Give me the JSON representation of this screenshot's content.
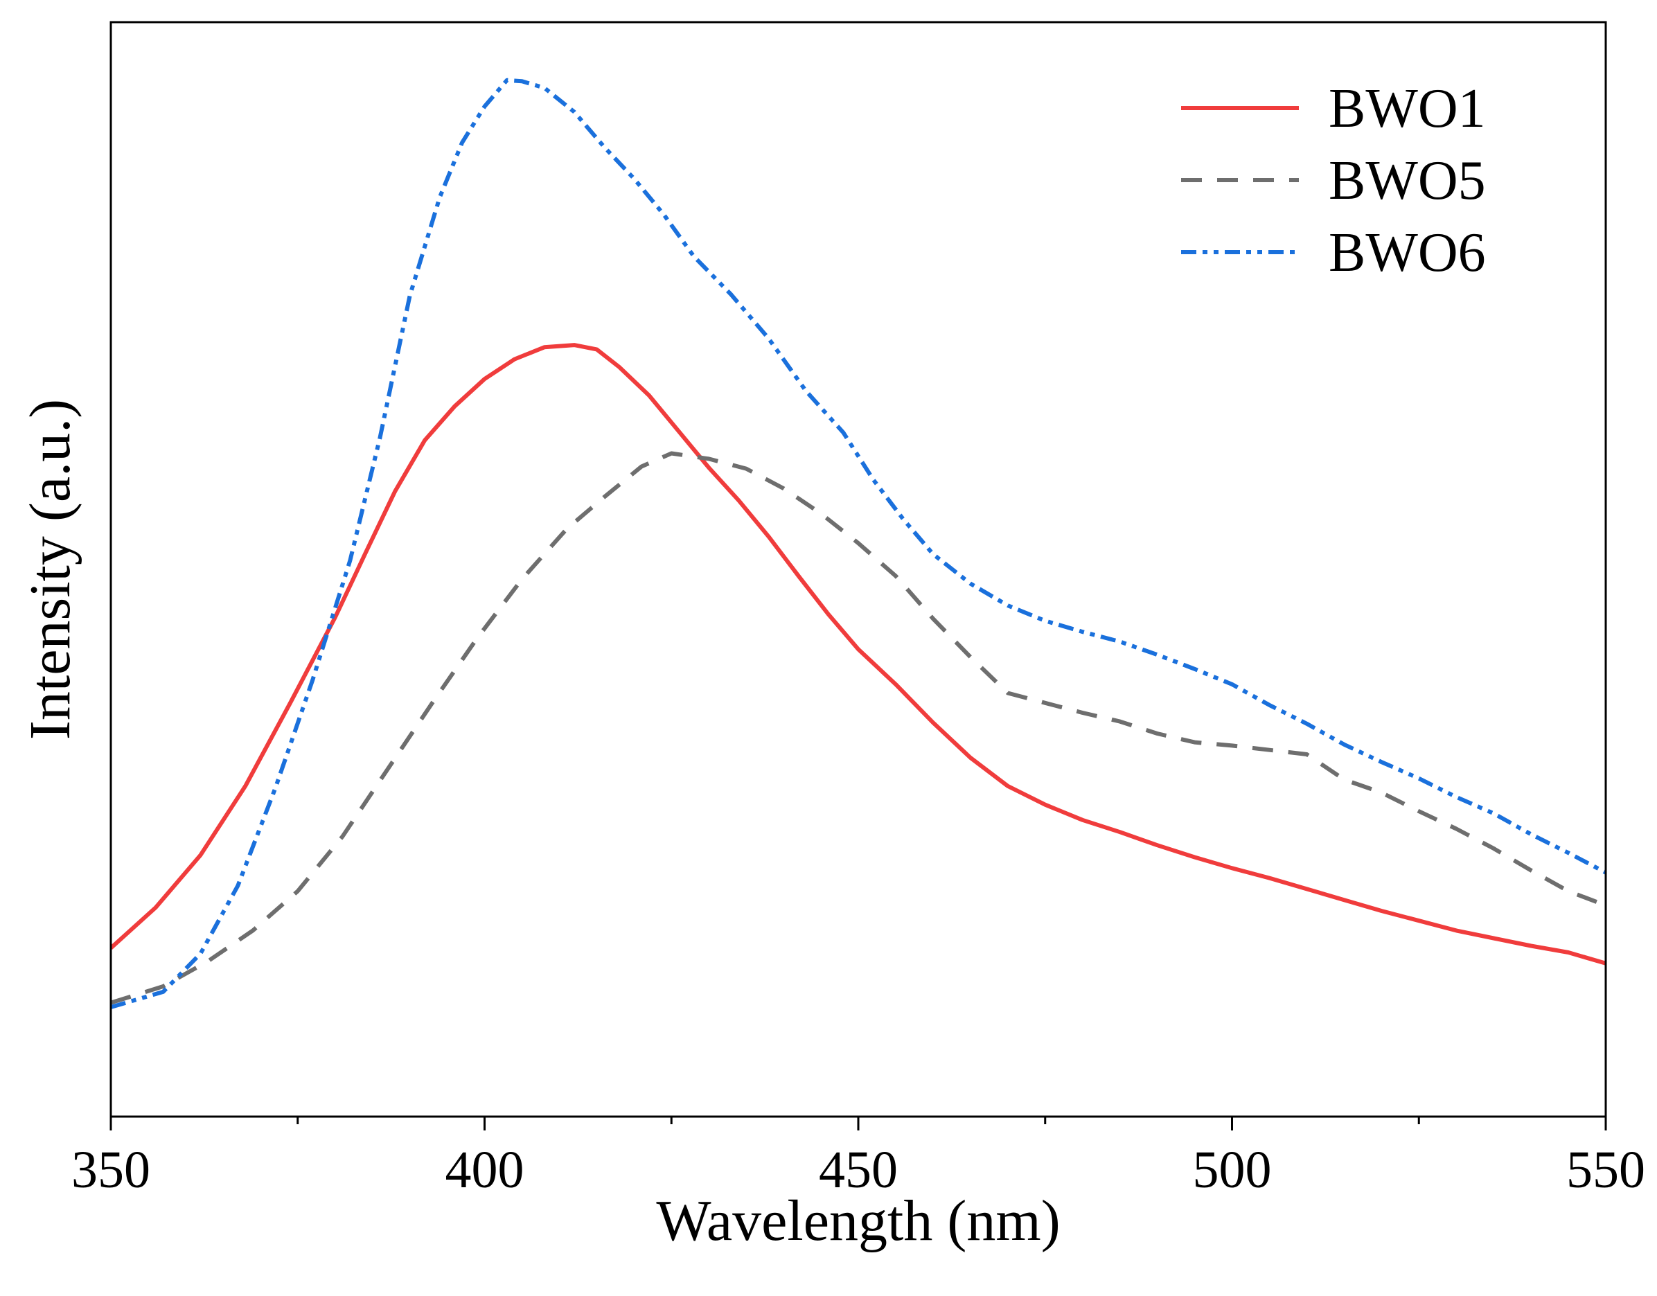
{
  "chart_data": {
    "type": "line",
    "title": "",
    "xlabel": "Wavelength (nm)",
    "ylabel": "Intensity (a.u.)",
    "xlim": [
      350,
      550
    ],
    "ylim": [
      0,
      100
    ],
    "xticks": [
      350,
      400,
      450,
      500,
      550
    ],
    "xtick_labels": [
      "350",
      "400",
      "450",
      "500",
      "550"
    ],
    "x_minor_ticks": [
      375,
      425,
      475,
      525
    ],
    "y_ticks_labeled": false,
    "grid": false,
    "legend_position": "top-right",
    "series": [
      {
        "name": "BWO1",
        "color": "#f03c3c",
        "dash": "solid",
        "points": [
          [
            350,
            15.4
          ],
          [
            356,
            19.1
          ],
          [
            362,
            23.9
          ],
          [
            368,
            30.2
          ],
          [
            374,
            37.8
          ],
          [
            380,
            45.6
          ],
          [
            384,
            51.4
          ],
          [
            388,
            57.1
          ],
          [
            392,
            61.8
          ],
          [
            396,
            64.9
          ],
          [
            400,
            67.4
          ],
          [
            404,
            69.2
          ],
          [
            408,
            70.3
          ],
          [
            412,
            70.5
          ],
          [
            415,
            70.1
          ],
          [
            418,
            68.5
          ],
          [
            422,
            65.9
          ],
          [
            426,
            62.6
          ],
          [
            430,
            59.3
          ],
          [
            434,
            56.3
          ],
          [
            438,
            53.0
          ],
          [
            442,
            49.4
          ],
          [
            446,
            45.9
          ],
          [
            450,
            42.7
          ],
          [
            455,
            39.5
          ],
          [
            460,
            36.0
          ],
          [
            465,
            32.8
          ],
          [
            470,
            30.2
          ],
          [
            475,
            28.5
          ],
          [
            480,
            27.1
          ],
          [
            485,
            26.0
          ],
          [
            490,
            24.8
          ],
          [
            495,
            23.7
          ],
          [
            500,
            22.7
          ],
          [
            505,
            21.8
          ],
          [
            510,
            20.8
          ],
          [
            515,
            19.8
          ],
          [
            520,
            18.8
          ],
          [
            525,
            17.9
          ],
          [
            530,
            17.0
          ],
          [
            535,
            16.3
          ],
          [
            540,
            15.6
          ],
          [
            545,
            15.0
          ],
          [
            550,
            14.0
          ]
        ]
      },
      {
        "name": "BWO5",
        "color": "#6e6e6e",
        "dash": "dashed",
        "points": [
          [
            350,
            10.4
          ],
          [
            357,
            11.9
          ],
          [
            363,
            14.2
          ],
          [
            369,
            17.0
          ],
          [
            375,
            20.6
          ],
          [
            381,
            25.6
          ],
          [
            387,
            31.7
          ],
          [
            393,
            37.8
          ],
          [
            399,
            43.7
          ],
          [
            405,
            49.1
          ],
          [
            411,
            53.7
          ],
          [
            416,
            56.6
          ],
          [
            421,
            59.4
          ],
          [
            425,
            60.6
          ],
          [
            430,
            60.1
          ],
          [
            435,
            59.2
          ],
          [
            440,
            57.4
          ],
          [
            445,
            55.1
          ],
          [
            450,
            52.4
          ],
          [
            455,
            49.4
          ],
          [
            460,
            45.5
          ],
          [
            465,
            42.0
          ],
          [
            470,
            38.7
          ],
          [
            475,
            37.8
          ],
          [
            480,
            36.9
          ],
          [
            485,
            36.1
          ],
          [
            490,
            35.0
          ],
          [
            495,
            34.2
          ],
          [
            500,
            33.9
          ],
          [
            505,
            33.5
          ],
          [
            510,
            33.1
          ],
          [
            515,
            30.8
          ],
          [
            520,
            29.6
          ],
          [
            525,
            27.9
          ],
          [
            530,
            26.3
          ],
          [
            535,
            24.5
          ],
          [
            540,
            22.5
          ],
          [
            545,
            20.6
          ],
          [
            550,
            19.3
          ]
        ]
      },
      {
        "name": "BWO6",
        "color": "#1a70dc",
        "dash": "dash-dot-dot",
        "points": [
          [
            350,
            10.0
          ],
          [
            357,
            11.4
          ],
          [
            362,
            14.9
          ],
          [
            367,
            21.1
          ],
          [
            372,
            30.0
          ],
          [
            377,
            39.9
          ],
          [
            382,
            50.8
          ],
          [
            386,
            62.0
          ],
          [
            390,
            75.0
          ],
          [
            394,
            84.0
          ],
          [
            397,
            89.0
          ],
          [
            400,
            92.3
          ],
          [
            403,
            94.7
          ],
          [
            405,
            94.6
          ],
          [
            408,
            94.0
          ],
          [
            412,
            91.8
          ],
          [
            416,
            88.6
          ],
          [
            420,
            85.7
          ],
          [
            424,
            82.4
          ],
          [
            428,
            78.6
          ],
          [
            433,
            75.1
          ],
          [
            438,
            71.1
          ],
          [
            443,
            66.3
          ],
          [
            448,
            62.5
          ],
          [
            452,
            58.2
          ],
          [
            456,
            54.6
          ],
          [
            460,
            51.4
          ],
          [
            465,
            48.7
          ],
          [
            470,
            46.7
          ],
          [
            475,
            45.3
          ],
          [
            480,
            44.3
          ],
          [
            485,
            43.4
          ],
          [
            490,
            42.2
          ],
          [
            495,
            40.9
          ],
          [
            500,
            39.5
          ],
          [
            505,
            37.6
          ],
          [
            510,
            35.9
          ],
          [
            515,
            34.0
          ],
          [
            520,
            32.4
          ],
          [
            525,
            30.9
          ],
          [
            530,
            29.2
          ],
          [
            535,
            27.7
          ],
          [
            540,
            25.8
          ],
          [
            545,
            24.1
          ],
          [
            550,
            22.3
          ]
        ]
      }
    ]
  }
}
